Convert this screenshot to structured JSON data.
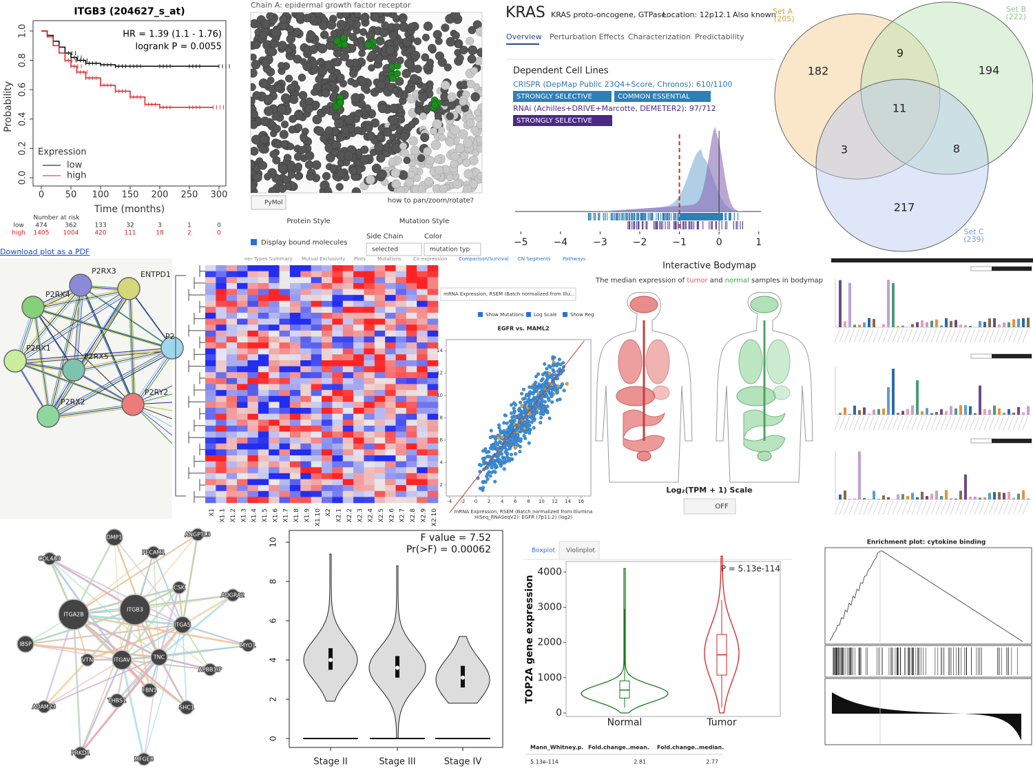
{
  "km": {
    "title": "ITGB3 (204627_s_at)",
    "ylabel": "Probability",
    "xlabel": "Time (months)",
    "hr": "HR = 1.39 (1.1 - 1.76)",
    "logrank": "logrank P = 0.0055",
    "legend_title": "Expression",
    "xlim": [
      0,
      300
    ],
    "ylim": [
      0,
      1
    ],
    "xticks": [
      0,
      50,
      100,
      150,
      200,
      250,
      300
    ],
    "yticks": [
      {
        "value": 0,
        "label": "0.0"
      },
      {
        "value": 0.2,
        "label": "0.2"
      },
      {
        "value": 0.4,
        "label": "0.4"
      },
      {
        "value": 0.6,
        "label": "0.6"
      },
      {
        "value": 0.8,
        "label": "0.8"
      },
      {
        "value": 1,
        "label": "1.0"
      }
    ],
    "series": [
      {
        "name": "low",
        "color": "#000000",
        "x": [
          0,
          10,
          20,
          30,
          40,
          50,
          60,
          75,
          100,
          125,
          150,
          200,
          250,
          300
        ],
        "values": [
          1,
          0.97,
          0.93,
          0.89,
          0.85,
          0.82,
          0.8,
          0.78,
          0.77,
          0.76,
          0.76,
          0.76,
          0.76,
          0.76
        ]
      },
      {
        "name": "high",
        "color": "#e31a1c",
        "x": [
          0,
          10,
          20,
          30,
          40,
          50,
          60,
          75,
          100,
          125,
          150,
          175,
          200,
          250,
          290
        ],
        "values": [
          1,
          0.96,
          0.9,
          0.85,
          0.8,
          0.76,
          0.72,
          0.68,
          0.63,
          0.59,
          0.55,
          0.5,
          0.48,
          0.48,
          0.48
        ]
      }
    ],
    "risk_title": "Number at risk",
    "risk_rows": [
      {
        "name": "low",
        "values": [
          474,
          362,
          133,
          32,
          3,
          1,
          0
        ]
      },
      {
        "name": "high",
        "values": [
          1405,
          1004,
          420,
          111,
          18,
          2,
          0
        ]
      }
    ],
    "link": "Download plot as a PDF"
  },
  "protein": {
    "title": "Chain A: epidermal growth factor receptor",
    "button": "PyMol",
    "help": "how to pan/zoom/rotate?",
    "protein_style": "Protein Style",
    "mutation_style": "Mutation Style",
    "side_chain": "Side Chain",
    "color": "Color",
    "checkbox": "Display bound molecules",
    "select1": "selected",
    "select2": "mutation typ"
  },
  "kras": {
    "gene": "KRAS",
    "name": "KRAS proto-oncogene, GTPase",
    "location": "Location: 12p12.1",
    "aka": "Also known",
    "tabs": [
      "Overview",
      "Perturbation Effects",
      "Characterization",
      "Predictability"
    ],
    "section": "Dependent Cell Lines",
    "crispr": "CRISPR (DepMap Public 23Q4+Score, Chronos): 610/1100",
    "badges": [
      "STRONGLY SELECTIVE",
      "COMMON ESSENTIAL"
    ],
    "rnai": "RNAi (Achilles+DRIVE+Marcotte, DEMETER2): 97/712",
    "rnai_badge": "STRONGLY SELECTIVE",
    "xlim": [
      -5.3,
      1.3
    ],
    "xticks": [
      {
        "value": -5,
        "label": "−5"
      },
      {
        "value": -4,
        "label": "−4"
      },
      {
        "value": -3,
        "label": "−3"
      },
      {
        "value": -2,
        "label": "−2"
      },
      {
        "value": -1,
        "label": "−1"
      },
      0,
      1
    ]
  },
  "venn": {
    "sets": [
      {
        "name": "Set A",
        "size": "(205)",
        "color": "#f5c98a"
      },
      {
        "name": "Set B",
        "size": "(222)",
        "color": "#b9e3b1"
      },
      {
        "name": "Set C",
        "size": "(239)",
        "color": "#b5c8ef"
      }
    ],
    "regions": {
      "a": 182,
      "ab": 9,
      "b": 194,
      "abc": 11,
      "ac": 3,
      "bc": 8,
      "c": 217
    }
  },
  "string_net": {
    "nodes": [
      "P2RX3",
      "ENTPD1",
      "P2RX4",
      "P2RX1",
      "P2RX5",
      "P2",
      "P2RY2",
      "P2RX2"
    ]
  },
  "heatmap": {
    "columns": [
      "X1",
      "X1.1",
      "X1.2",
      "X1.3",
      "X1.4",
      "X1.5",
      "X1.6",
      "X1.7",
      "X1.8",
      "X1.9",
      "X1.10",
      "X2",
      "X2.1",
      "X2.2",
      "X2.3",
      "X2.4",
      "X2.5",
      "X2.6",
      "X2.7",
      "X2.8",
      "X2.9",
      "X2.10"
    ]
  },
  "scatter": {
    "tabs": [
      "ner Types Summary",
      "Mutual Exclusivity",
      "Plots",
      "Mutations",
      "Co-expression",
      "Comparison/Survival",
      "CN Segments",
      "Pathways"
    ],
    "dropdown": "mRNA Expression, RSEM (Batch normalized from Illu...",
    "checks": [
      "Show Mutations",
      "Log Scale",
      "Show Reg"
    ],
    "title": "EGFR vs. MAML2",
    "xlabel": "mRNA Expression, RSEM (Batch normalized from Illumina",
    "xlabel2": "HiSeq_RNASeqV2): EGFR (7p11.2) (log2)",
    "xlim": [
      -4.5,
      17.5
    ],
    "ylim": [
      1,
      15
    ],
    "xticks": [
      -4,
      -2,
      0,
      2,
      4,
      6,
      8,
      10,
      12,
      14,
      16
    ],
    "yticks": [
      2,
      4,
      6,
      8,
      10,
      12,
      14
    ]
  },
  "bodymap": {
    "title": "Interactive Bodymap",
    "sub_a": "The median expression of ",
    "tumor": "tumor",
    "sub_b": " and ",
    "normal": "normal",
    "sub_c": " samples in bodymap",
    "scale": "Log₂(TPM + 1) Scale",
    "toggle": "OFF"
  },
  "gene_net": {
    "nodes": [
      "DMP1",
      "ANGPTL3",
      "COL4A3",
      "PECAM1",
      "CSK",
      "ADGRA2",
      "ITGA2B",
      "ITGB3",
      "ITGA5",
      "IBSP",
      "MYO1",
      "VTN",
      "ITGAV",
      "TNC",
      "APBB1IP",
      "FBN1",
      "THBS1",
      "SHC1",
      "ADAM23",
      "PRKD1",
      "MFGE8"
    ]
  },
  "violin": {
    "f": "F value = 7.52",
    "p": "Pr(>F) = 0.00062",
    "categories": [
      "Stage II",
      "Stage III",
      "Stage IV"
    ],
    "medians": [
      4,
      3.6,
      3.1
    ],
    "ylim": [
      0,
      10.6
    ],
    "yticks": [
      0,
      2,
      4,
      6,
      8,
      10
    ]
  },
  "boxplot": {
    "tabs": [
      "Boxplot",
      "Violinplot"
    ],
    "p": "P = 5.13e-114",
    "ylabel": "TOP2A gene expression",
    "categories": [
      "Normal",
      "Tumor"
    ],
    "colors": [
      "#1a7a1a",
      "#d62020"
    ],
    "medians": [
      650,
      1650
    ],
    "ylim": [
      -100,
      4300
    ],
    "yticks": [
      0,
      1000,
      2000,
      3000,
      4000
    ],
    "table": {
      "headers": [
        "Mann_Whitney.p.",
        "Fold.change..mean.",
        "Fold.change..median."
      ],
      "row": [
        "5.13e-114",
        "2.81",
        "2.77"
      ]
    }
  },
  "gsea": {
    "title": "Enrichment plot: cytokine binding"
  }
}
